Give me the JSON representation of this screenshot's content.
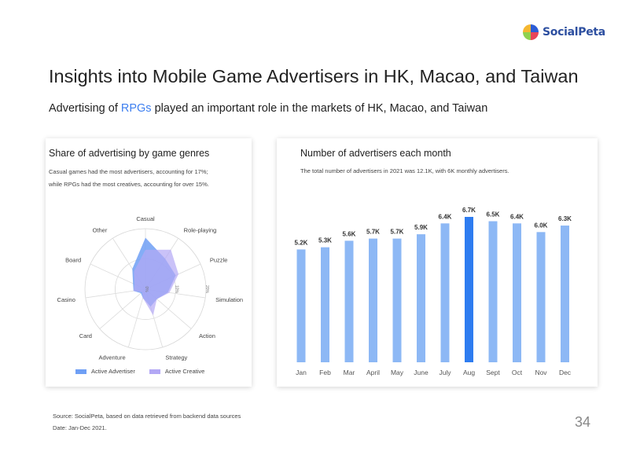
{
  "logo": {
    "text": "SocialPeta",
    "mark_colors": [
      "#2b5cd6",
      "#e8455a",
      "#8fd14f",
      "#f5b731"
    ]
  },
  "title": "Insights into Mobile Game Advertisers in HK, Macao, and Taiwan",
  "subtitle": {
    "prefix": "Advertising of ",
    "highlight": "RPGs",
    "suffix": " played an important role in the markets of HK, Macao, and Taiwan",
    "highlight_color": "#3d7ff0"
  },
  "left_card": {
    "title": "Share of advertising by game genres",
    "desc_line1": "Casual games had the most advertisers, accounting for 17%;",
    "desc_line2": "while RPGs had the most creatives, accounting for over 15%.",
    "legend": [
      {
        "label": "Active Advertiser",
        "color": "#6f9ff5"
      },
      {
        "label": "Active Creative",
        "color": "#b3a8f5"
      }
    ]
  },
  "right_card": {
    "title": "Number of advertisers each month",
    "desc": "The total number of advertisers in 2021 was 12.1K, with 6K monthly advertisers."
  },
  "footer": {
    "source": "Source: SocialPeta, based on data retrieved from backend data sources",
    "date": "Date: Jan-Dec 2021."
  },
  "page_number": "34",
  "chart_data": [
    {
      "type": "radar",
      "title": "Share of advertising by game genres",
      "axes": [
        "Casual",
        "Role-playing",
        "Puzzle",
        "Simulation",
        "Action",
        "Strategy",
        "Adventure",
        "Card",
        "Casino",
        "Board",
        "Other"
      ],
      "radial_ticks": [
        "0%",
        "10%",
        "20%"
      ],
      "rmax": 20,
      "series": [
        {
          "name": "Active Advertiser",
          "color": "#6f9ff5",
          "values": [
            17,
            12,
            11,
            7.5,
            5,
            6,
            3,
            2,
            4,
            4.5,
            8
          ]
        },
        {
          "name": "Active Creative",
          "color": "#b3a8f5",
          "values": [
            13,
            15.5,
            12,
            8,
            5,
            9,
            3,
            1.5,
            4,
            4,
            7
          ]
        }
      ],
      "legend_position": "bottom"
    },
    {
      "type": "bar",
      "title": "Number of advertisers each month",
      "categories": [
        "Jan",
        "Feb",
        "Mar",
        "April",
        "May",
        "June",
        "July",
        "Aug",
        "Sept",
        "Oct",
        "Nov",
        "Dec"
      ],
      "values": [
        5.2,
        5.3,
        5.6,
        5.7,
        5.7,
        5.9,
        6.4,
        6.7,
        6.5,
        6.4,
        6.0,
        6.3
      ],
      "labels": [
        "5.2K",
        "5.3K",
        "5.6K",
        "5.7K",
        "5.7K",
        "5.9K",
        "6.4K",
        "6.7K",
        "6.5K",
        "6.4K",
        "6.0K",
        "6.3K"
      ],
      "bar_color": "#8db8f5",
      "highlight_color": "#2e7cf0",
      "highlight_index": 7,
      "ylim": [
        0,
        6.7
      ],
      "grid": false
    }
  ]
}
